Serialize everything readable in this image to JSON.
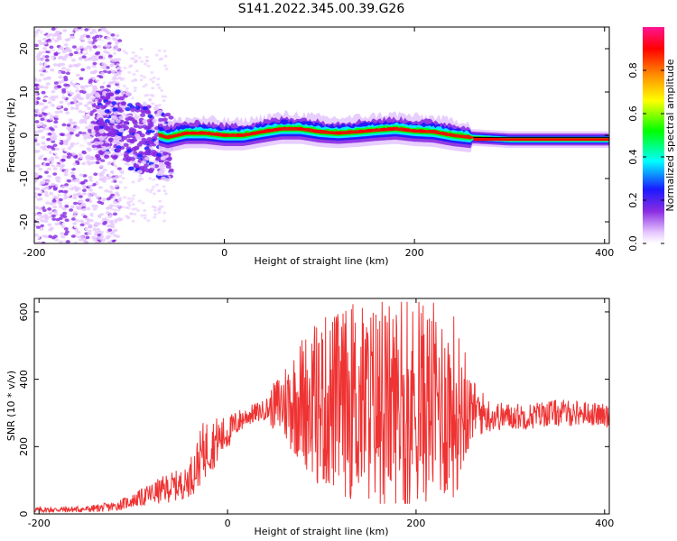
{
  "title": "S141.2022.345.00.39.G26",
  "colors": {
    "snr_line": "#ef3232",
    "axis": "#000000",
    "background": "#ffffff"
  },
  "chart_data": [
    {
      "type": "heatmap",
      "xlabel": "Height of straight line (km)",
      "ylabel": "Frequency (Hz)",
      "xlim": [
        -200,
        405
      ],
      "ylim": [
        -25,
        25
      ],
      "x_ticks": [
        "-200",
        "0",
        "200",
        "400"
      ],
      "y_ticks": [
        "-20",
        "-10",
        "0",
        "10",
        "20"
      ],
      "grid": false,
      "colorbar": {
        "label": "Normalized spectral amplitude",
        "range": [
          0,
          1
        ],
        "ticks": [
          "0.0",
          "0.2",
          "0.4",
          "0.6",
          "0.8"
        ],
        "colors": [
          "#ffffff",
          "#e6c8ff",
          "#8a2be2",
          "#1a1aff",
          "#00ffff",
          "#00ff00",
          "#ffff00",
          "#ff8c00",
          "#ff0000",
          "#ff1493"
        ]
      },
      "ridge": {
        "description_free": true,
        "x": [
          -130,
          -110,
          -90,
          -75,
          -60,
          -40,
          -20,
          0,
          20,
          40,
          60,
          80,
          100,
          120,
          140,
          160,
          180,
          200,
          220,
          240,
          260,
          300,
          340,
          405
        ],
        "freq": [
          2.5,
          2.5,
          1.5,
          0.5,
          -0.5,
          0.5,
          0.5,
          0.0,
          0.0,
          0.8,
          1.5,
          1.5,
          0.8,
          0.5,
          0.8,
          1.2,
          1.5,
          1.0,
          0.8,
          0.0,
          -0.5,
          -1.0,
          -1.0,
          -1.0
        ]
      }
    },
    {
      "type": "line",
      "xlabel": "Height of straight line (km)",
      "ylabel": "SNR (10 * v/v)",
      "xlim": [
        -205,
        405
      ],
      "ylim": [
        0,
        640
      ],
      "x_ticks": [
        "-200",
        "0",
        "200",
        "400"
      ],
      "y_ticks": [
        "0",
        "200",
        "400",
        "600"
      ],
      "grid": false,
      "series": [
        {
          "envelope_x": [
            -205,
            -150,
            -120,
            -100,
            -80,
            -60,
            -45,
            -35,
            -25,
            -10,
            0,
            10,
            20,
            40,
            60,
            80,
            100,
            120,
            140,
            160,
            180,
            200,
            220,
            240,
            260,
            280,
            300,
            320,
            340,
            360,
            380,
            405
          ],
          "mean": [
            12,
            14,
            22,
            40,
            60,
            80,
            90,
            130,
            190,
            220,
            240,
            270,
            290,
            310,
            330,
            340,
            330,
            330,
            330,
            330,
            330,
            330,
            330,
            320,
            310,
            290,
            290,
            290,
            300,
            300,
            300,
            290
          ],
          "spread": [
            8,
            10,
            15,
            20,
            35,
            45,
            45,
            70,
            90,
            70,
            50,
            40,
            30,
            30,
            120,
            200,
            260,
            280,
            300,
            300,
            300,
            300,
            300,
            280,
            90,
            45,
            40,
            40,
            40,
            40,
            35,
            35
          ]
        }
      ]
    }
  ]
}
